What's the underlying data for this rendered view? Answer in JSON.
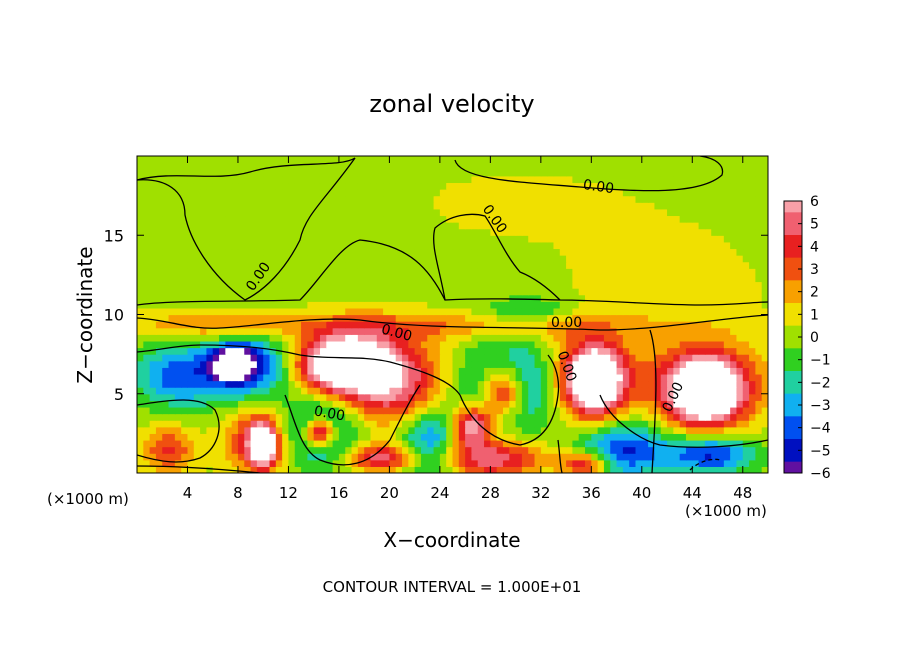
{
  "chart_data": {
    "type": "heatmap",
    "title": "zonal velocity",
    "xlabel": "X−coordinate",
    "ylabel": "Z−coordinate",
    "x_unit": "(×1000 m)",
    "y_unit": "(×1000 m)",
    "xlim": [
      0,
      50
    ],
    "ylim": [
      0,
      20
    ],
    "x_ticks": [
      4,
      8,
      12,
      16,
      20,
      24,
      28,
      32,
      36,
      40,
      44,
      48
    ],
    "x_tick_labels": [
      "4",
      "8",
      "12",
      "16",
      "20",
      "24",
      "28",
      "32",
      "36",
      "40",
      "44",
      "48"
    ],
    "y_ticks": [
      5,
      10,
      15
    ],
    "y_tick_labels": [
      "5",
      "10",
      "15"
    ],
    "colorbar": {
      "levels": [
        6,
        5,
        4,
        3,
        2,
        1,
        0,
        -1,
        -2,
        -3,
        -4,
        -5,
        -6
      ],
      "labels": [
        "6",
        "5",
        "4",
        "3",
        "2",
        "1",
        "0",
        "−1",
        "−2",
        "−3",
        "−4",
        "−5",
        "−6"
      ],
      "colors": [
        "#f8a0a8",
        "#f06070",
        "#e82020",
        "#f05010",
        "#f8a000",
        "#f0e000",
        "#a0e000",
        "#30d020",
        "#20d0a0",
        "#10b0f0",
        "#0050f0",
        "#0010c0",
        "#6010a0"
      ]
    },
    "contour_label": "0.00",
    "footer": "CONTOUR INTERVAL = 1.000E+01",
    "blobs": [
      {
        "x": 9.2,
        "z": 6.8,
        "rx": 3.0,
        "rz": 2.0,
        "v": -5.2
      },
      {
        "x": 3.5,
        "z": 6.2,
        "rx": 3.5,
        "rz": 2.0,
        "v": -4.5
      },
      {
        "x": 7.5,
        "z": 6.9,
        "rx": 1.5,
        "rz": 1.0,
        "v": -7
      },
      {
        "x": 17.5,
        "z": 6.8,
        "rx": 4.8,
        "rz": 2.4,
        "v": 5.5
      },
      {
        "x": 16.5,
        "z": 6.9,
        "rx": 3.0,
        "rz": 1.5,
        "v": 8
      },
      {
        "x": 21.0,
        "z": 5.0,
        "rx": 3.5,
        "rz": 2.5,
        "v": 3.8
      },
      {
        "x": 14.5,
        "z": 2.7,
        "rx": 3.0,
        "rz": 2.2,
        "v": -4.5
      },
      {
        "x": 14.5,
        "z": 2.6,
        "rx": 1.3,
        "rz": 0.9,
        "v": 8
      },
      {
        "x": 23.0,
        "z": 2.0,
        "rx": 2.5,
        "rz": 2.5,
        "v": -4.5
      },
      {
        "x": 29.5,
        "z": 5.5,
        "rx": 3.5,
        "rz": 2.8,
        "v": -5.5
      },
      {
        "x": 29.0,
        "z": 5.2,
        "rx": 1.8,
        "rz": 1.8,
        "v": 8
      },
      {
        "x": 26.5,
        "z": 3.0,
        "rx": 1.5,
        "rz": 1.2,
        "v": 7
      },
      {
        "x": 36.0,
        "z": 6.0,
        "rx": 3.3,
        "rz": 2.6,
        "v": 5.5
      },
      {
        "x": 36.3,
        "z": 5.8,
        "rx": 1.8,
        "rz": 1.8,
        "v": 8
      },
      {
        "x": 45.0,
        "z": 5.5,
        "rx": 4.2,
        "rz": 2.6,
        "v": 5.5
      },
      {
        "x": 45.0,
        "z": 5.2,
        "rx": 2.6,
        "rz": 1.8,
        "v": 8
      },
      {
        "x": 38.5,
        "z": 1.5,
        "rx": 3.5,
        "rz": 1.8,
        "v": -5
      },
      {
        "x": 45.5,
        "z": 1.2,
        "rx": 3.5,
        "rz": 1.2,
        "v": -5
      },
      {
        "x": 9.5,
        "z": 2.0,
        "rx": 2.5,
        "rz": 2.0,
        "v": 4.5
      },
      {
        "x": 10.0,
        "z": 1.8,
        "rx": 1.0,
        "rz": 1.3,
        "v": 8
      },
      {
        "x": 2.5,
        "z": 1.5,
        "rx": 2.0,
        "rz": 1.5,
        "v": 3.5
      },
      {
        "x": 28.0,
        "z": 1.0,
        "rx": 4.0,
        "rz": 1.2,
        "v": 5.5
      },
      {
        "x": 19.5,
        "z": 1.0,
        "rx": 3.0,
        "rz": 0.9,
        "v": 5
      },
      {
        "x": 35.5,
        "z": 0.6,
        "rx": 2.0,
        "rz": 0.8,
        "v": 5
      },
      {
        "x": 25.0,
        "z": 9.3,
        "rx": 14.0,
        "rz": 0.9,
        "v": 2.2
      },
      {
        "x": 6.0,
        "z": 9.4,
        "rx": 6.0,
        "rz": 0.9,
        "v": 2.5
      },
      {
        "x": 31.0,
        "z": 10.3,
        "rx": 3.5,
        "rz": 0.8,
        "v": -2.0
      },
      {
        "x": 42.0,
        "z": 11.5,
        "rx": 8.0,
        "rz": 4.0,
        "v": 0.8
      },
      {
        "x": 10.0,
        "z": 15.0,
        "rx": 8.0,
        "rz": 3.5,
        "v": -0.5
      },
      {
        "x": 30.0,
        "z": 17.0,
        "rx": 12.0,
        "rz": 3.0,
        "v": 0.5
      }
    ]
  }
}
